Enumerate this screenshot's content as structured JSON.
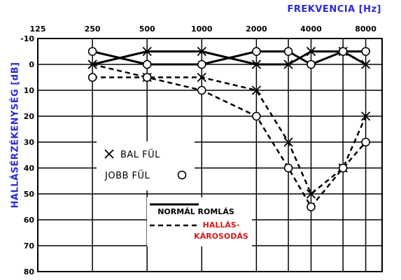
{
  "chart_data": {
    "type": "line",
    "xlabel": "FREKVENCIA [Hz]",
    "ylabel": "HALLÁSÉRZÉKENYSÉG [dB]",
    "x": [
      125,
      250,
      500,
      1000,
      2000,
      3000,
      4000,
      6000,
      8000
    ],
    "x_tick_labels": [
      "125",
      "250",
      "500",
      "1000",
      "2000",
      "4000",
      "8000"
    ],
    "x_tick_values": [
      125,
      250,
      500,
      1000,
      2000,
      4000,
      8000
    ],
    "y_tick_labels": [
      "-10",
      "0",
      "10",
      "20",
      "30",
      "40",
      "50",
      "60",
      "70",
      "80"
    ],
    "ylim": [
      -10,
      80
    ],
    "y_inverted": true,
    "x_scale": "log",
    "grid": true,
    "series": [
      {
        "group": "normal",
        "marker": "x",
        "line": "solid",
        "x": [
          250,
          500,
          1000,
          2000,
          3000,
          4000,
          6000,
          8000
        ],
        "values": [
          0,
          -5,
          -5,
          0,
          0,
          -5,
          -5,
          0
        ]
      },
      {
        "group": "normal",
        "marker": "o",
        "line": "solid",
        "x": [
          250,
          500,
          1000,
          2000,
          3000,
          4000,
          6000,
          8000
        ],
        "values": [
          -5,
          0,
          0,
          -5,
          -5,
          0,
          -5,
          -5
        ]
      },
      {
        "group": "damaged",
        "marker": "x",
        "line": "dashed",
        "x": [
          250,
          500,
          1000,
          2000,
          3000,
          4000,
          6000,
          8000
        ],
        "values": [
          0,
          5,
          5,
          10,
          30,
          50,
          40,
          20
        ]
      },
      {
        "group": "damaged",
        "marker": "o",
        "line": "dashed",
        "x": [
          250,
          500,
          1000,
          2000,
          3000,
          4000,
          6000,
          8000
        ],
        "values": [
          5,
          5,
          10,
          20,
          40,
          55,
          40,
          30
        ]
      }
    ],
    "legend_markers": [
      {
        "symbol": "x",
        "label": "BAL FÜL"
      },
      {
        "symbol": "o",
        "label": "JOBB FÜL"
      }
    ],
    "legend_lines": [
      {
        "style": "solid",
        "label_lines": [
          "NORMÁL ROMLÁS"
        ],
        "color": "#000000"
      },
      {
        "style": "dashed",
        "label_lines": [
          "HALLÁS-",
          "KÁROSODÁS"
        ],
        "color": "#d11a1a"
      }
    ]
  }
}
